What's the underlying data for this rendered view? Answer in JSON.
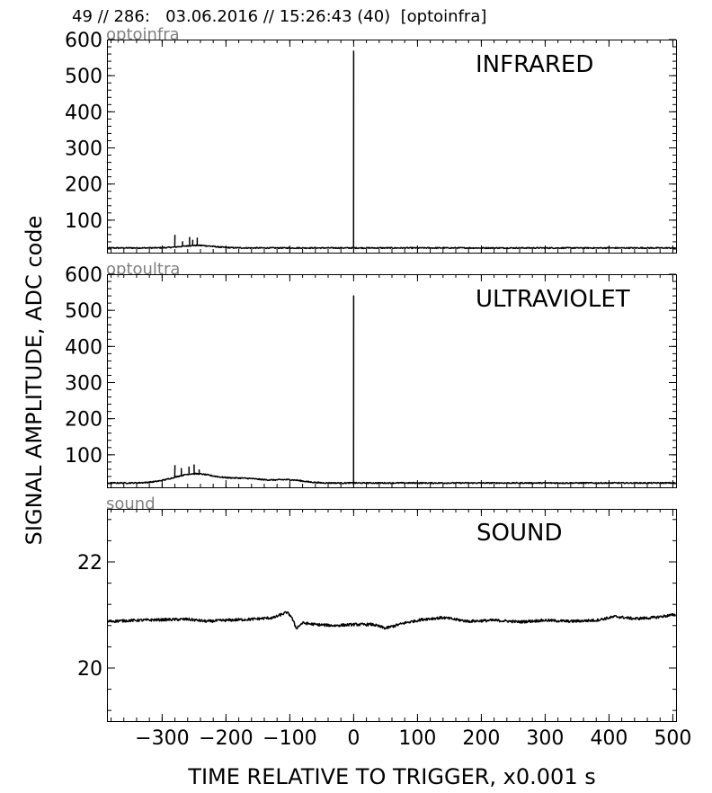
{
  "header": {
    "title": "49 // 286:   03.06.2016 // 15:26:43 (40)  [optoinfra]"
  },
  "chart_data": {
    "type": "line",
    "xlabel": "TIME RELATIVE TO TRIGGER,   x0.001 s",
    "ylabel": "SIGNAL AMPLITUDE,  ADC code",
    "xlim": [
      -385,
      505
    ],
    "xticks": [
      -300,
      -200,
      -100,
      0,
      100,
      200,
      300,
      400,
      500
    ],
    "xtick_labels": [
      "−300",
      "−200",
      "−100",
      "0",
      "100",
      "200",
      "300",
      "400",
      "500"
    ],
    "panels": [
      {
        "name": "infrared",
        "channel": "optoinfra",
        "label": "INFRARED",
        "ylim": [
          10,
          600
        ],
        "yticks": [
          100,
          200,
          300,
          400,
          500,
          600
        ],
        "baseline": 23,
        "noise": 1.6,
        "bumps": [
          {
            "center": -245,
            "width": 35,
            "amplitude": 7
          }
        ],
        "spikes": [
          {
            "x": -280,
            "y": 58
          },
          {
            "x": -268,
            "y": 40
          },
          {
            "x": -257,
            "y": 52
          },
          {
            "x": -252,
            "y": 44
          },
          {
            "x": -245,
            "y": 50
          },
          {
            "x": 0,
            "y": 568
          }
        ]
      },
      {
        "name": "ultraviolet",
        "channel": "optoultra",
        "label": "ULTRAVIOLET",
        "ylim": [
          10,
          600
        ],
        "yticks": [
          100,
          200,
          300,
          400,
          500,
          600
        ],
        "baseline": 22,
        "noise": 1.6,
        "bumps": [
          {
            "center": -250,
            "width": 45,
            "amplitude": 25
          },
          {
            "center": -170,
            "width": 45,
            "amplitude": 12
          },
          {
            "center": -100,
            "width": 30,
            "amplitude": 8
          }
        ],
        "spikes": [
          {
            "x": -280,
            "y": 70
          },
          {
            "x": -270,
            "y": 62
          },
          {
            "x": -258,
            "y": 66
          },
          {
            "x": -250,
            "y": 72
          },
          {
            "x": -242,
            "y": 58
          },
          {
            "x": 0,
            "y": 540
          }
        ]
      },
      {
        "name": "sound",
        "channel": "sound",
        "label": "SOUND",
        "ylim": [
          19,
          23
        ],
        "yticks": [
          20,
          22
        ],
        "trace": [
          [
            -385,
            20.88
          ],
          [
            -340,
            20.9
          ],
          [
            -300,
            20.91
          ],
          [
            -260,
            20.92
          ],
          [
            -230,
            20.88
          ],
          [
            -200,
            20.9
          ],
          [
            -160,
            20.92
          ],
          [
            -125,
            20.95
          ],
          [
            -105,
            21.05
          ],
          [
            -98,
            20.98
          ],
          [
            -90,
            20.75
          ],
          [
            -80,
            20.85
          ],
          [
            -60,
            20.82
          ],
          [
            -30,
            20.8
          ],
          [
            0,
            20.82
          ],
          [
            30,
            20.82
          ],
          [
            50,
            20.75
          ],
          [
            80,
            20.85
          ],
          [
            110,
            20.92
          ],
          [
            140,
            20.95
          ],
          [
            180,
            20.88
          ],
          [
            220,
            20.9
          ],
          [
            260,
            20.87
          ],
          [
            300,
            20.9
          ],
          [
            340,
            20.88
          ],
          [
            380,
            20.9
          ],
          [
            410,
            20.97
          ],
          [
            440,
            20.93
          ],
          [
            470,
            20.95
          ],
          [
            500,
            21.0
          ]
        ],
        "noise": 0.025
      }
    ]
  }
}
